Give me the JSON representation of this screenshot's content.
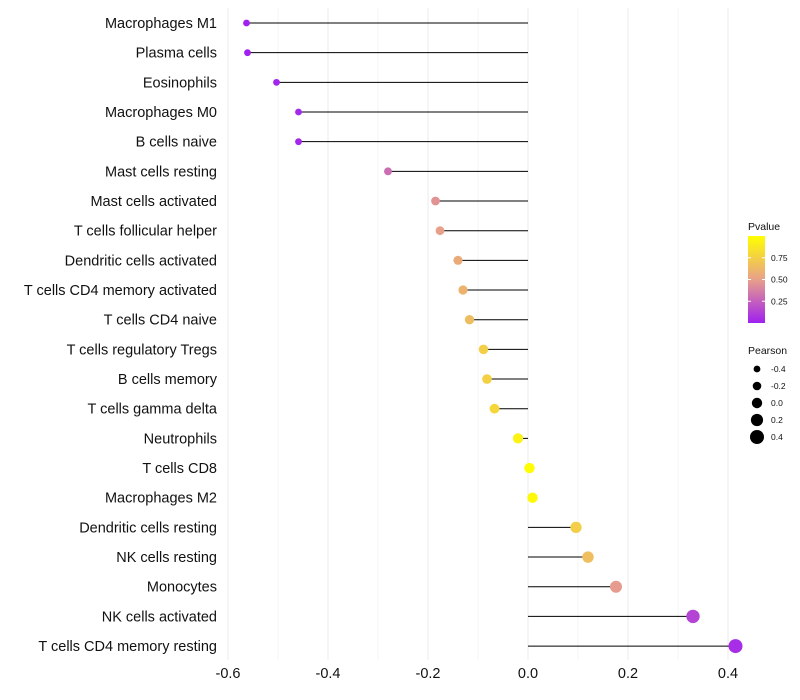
{
  "chart_data": {
    "type": "lollipop",
    "orientation": "horizontal",
    "xlim": [
      -0.6,
      0.4
    ],
    "xticks": [
      "-0.6",
      "-0.4",
      "-0.2",
      "0.0",
      "0.2",
      "0.4"
    ],
    "xtick_values": [
      -0.6,
      -0.4,
      -0.2,
      0.0,
      0.2,
      0.4
    ],
    "grid": true,
    "categories": [
      "Macrophages M1",
      "Plasma cells",
      "Eosinophils",
      "Macrophages M0",
      "B cells naive",
      "Mast cells resting",
      "Mast cells activated",
      "T cells follicular helper",
      "Dendritic cells activated",
      "T cells CD4 memory activated",
      "T cells CD4 naive",
      "T cells regulatory  Tregs ",
      "B cells memory",
      "T cells gamma delta",
      "Neutrophils",
      "T cells CD8",
      "Macrophages M2",
      "Dendritic cells resting",
      "NK cells resting",
      "Monocytes",
      "NK cells activated",
      "T cells CD4 memory resting"
    ],
    "pearson": [
      -0.563,
      -0.561,
      -0.503,
      -0.459,
      -0.459,
      -0.28,
      -0.185,
      -0.176,
      -0.14,
      -0.13,
      -0.117,
      -0.089,
      -0.082,
      -0.067,
      -0.02,
      0.003,
      0.009,
      0.096,
      0.12,
      0.176,
      0.33,
      0.415
    ],
    "pvalue": [
      0.0,
      0.0,
      0.02,
      0.03,
      0.03,
      0.3,
      0.45,
      0.5,
      0.56,
      0.6,
      0.65,
      0.74,
      0.75,
      0.79,
      0.93,
      0.99,
      0.97,
      0.74,
      0.66,
      0.48,
      0.14,
      0.05
    ],
    "legends": {
      "color": {
        "title": "Pvalue",
        "ticks": [
          "0.25",
          "0.50",
          "0.75"
        ],
        "tick_values": [
          0.25,
          0.5,
          0.75
        ],
        "range": [
          0.0,
          1.0
        ],
        "low_color": "#a020f0",
        "mid_color": "#e8a08a",
        "high_color": "#ffff00"
      },
      "size": {
        "title": "Pearson",
        "labels": [
          "-0.4",
          "-0.2",
          "0.0",
          "0.2",
          "0.4"
        ],
        "values": [
          -0.4,
          -0.2,
          0.0,
          0.2,
          0.4
        ],
        "color": "#000000"
      }
    },
    "segment_color": "#000000",
    "grid_color": "#ebebeb"
  }
}
